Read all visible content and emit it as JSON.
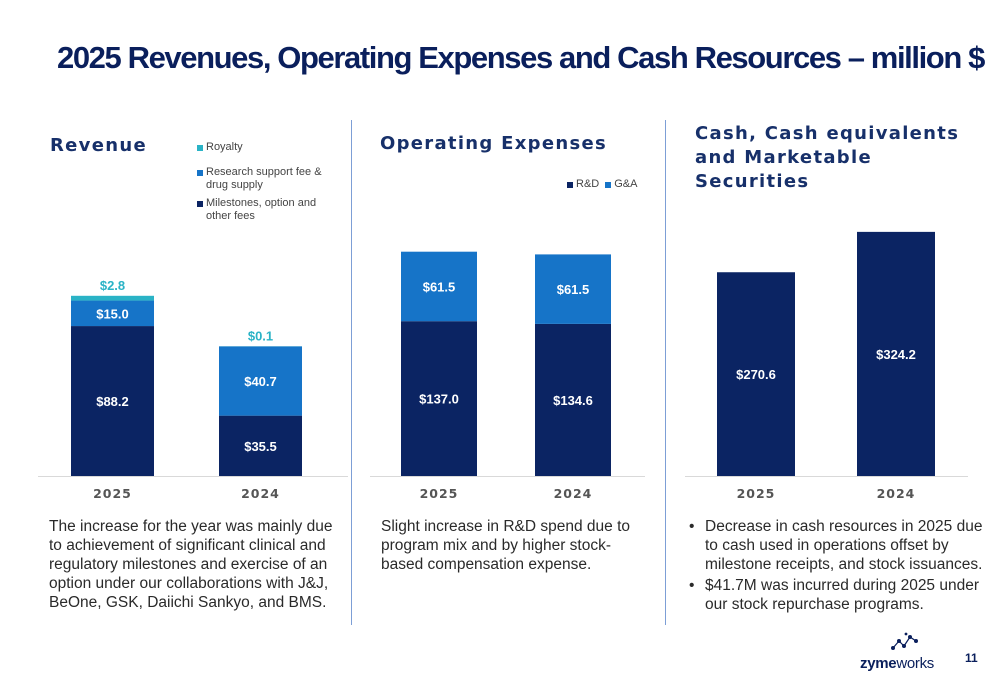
{
  "page": {
    "title": "2025 Revenues, Operating Expenses and Cash Resources – million $",
    "page_number": "11"
  },
  "colors": {
    "navy": "#0b2463",
    "blue": "#1674c8",
    "teal": "#2ab3c6",
    "title": "#0a1f5c"
  },
  "panels": {
    "revenue": {
      "title": "Revenue",
      "note": "The increase for the year was mainly due to achievement of significant clinical and regulatory milestones and exercise of an option under our collaborations with J&J, BeOne, GSK, Daiichi Sankyo, and BMS."
    },
    "opex": {
      "title": "Operating Expenses",
      "note": "Slight increase in R&D spend due to program mix and by higher stock-based compensation expense."
    },
    "cash": {
      "title_lines": [
        "Cash, Cash equivalents",
        "and Marketable",
        "Securities"
      ],
      "bullets": [
        "Decrease in cash resources in 2025 due to cash used in operations offset by milestone receipts, and stock issuances.",
        "$41.7M was incurred during 2025 under our stock repurchase programs."
      ]
    }
  },
  "logo": {
    "text_bold": "zyme",
    "text_regular": "works",
    "icon": "zymeworks-logo-icon"
  },
  "chart_data": [
    {
      "type": "bar",
      "stacked": true,
      "title": "Revenue",
      "categories": [
        "2025",
        "2024"
      ],
      "series": [
        {
          "name": "Milestones, option and other fees",
          "values": [
            88.2,
            35.5
          ],
          "labels": [
            "$88.2",
            "$35.5"
          ],
          "color": "#0b2463"
        },
        {
          "name": "Research support fee & drug supply",
          "values": [
            15.0,
            40.7
          ],
          "labels": [
            "$15.0",
            "$40.7"
          ],
          "color": "#1674c8"
        },
        {
          "name": "Royalty",
          "values": [
            2.8,
            0.1
          ],
          "labels": [
            "$2.8",
            "$0.1"
          ],
          "color": "#2ab3c6"
        }
      ],
      "legend_order": [
        "Royalty",
        "Research support fee & drug supply",
        "Milestones, option and other fees"
      ],
      "legend_position": "top-right"
    },
    {
      "type": "bar",
      "stacked": true,
      "title": "Operating Expenses",
      "categories": [
        "2025",
        "2024"
      ],
      "series": [
        {
          "name": "R&D",
          "values": [
            137.0,
            134.6
          ],
          "labels": [
            "$137.0",
            "$134.6"
          ],
          "color": "#0b2463"
        },
        {
          "name": "G&A",
          "values": [
            61.5,
            61.5
          ],
          "labels": [
            "$61.5",
            "$61.5"
          ],
          "color": "#1674c8"
        }
      ],
      "legend_position": "top-right"
    },
    {
      "type": "bar",
      "stacked": false,
      "title": "Cash, Cash equivalents and Marketable Securities",
      "categories": [
        "2025",
        "2024"
      ],
      "series": [
        {
          "name": "",
          "values": [
            270.6,
            324.2
          ],
          "labels": [
            "$270.6",
            "$324.2"
          ],
          "color": "#0b2463"
        }
      ],
      "legend_position": "none"
    }
  ]
}
